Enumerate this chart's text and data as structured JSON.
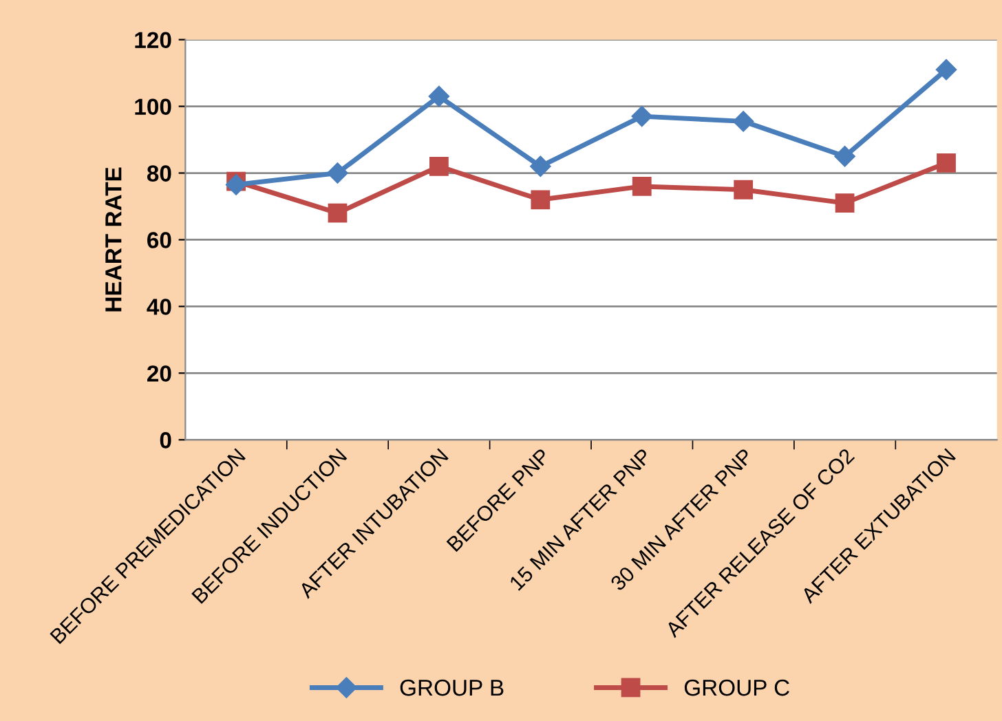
{
  "chart_data": {
    "type": "line",
    "ylabel": "HEART RATE",
    "categories": [
      "BEFORE PREMEDICATION",
      "BEFORE INDUCTION",
      "AFTER INTUBATION",
      "BEFORE PNP",
      "15 MIN AFTER PNP",
      "30 MIN AFTER PNP",
      "AFTER RELEASE OF CO2",
      "AFTER EXTUBATION"
    ],
    "series": [
      {
        "name": "GROUP B",
        "color": "#4a7ebb",
        "marker": "diamond",
        "values": [
          76.5,
          80,
          103,
          82,
          97,
          95.5,
          85,
          111
        ]
      },
      {
        "name": "GROUP C",
        "color": "#be4b48",
        "marker": "square",
        "values": [
          77.5,
          68,
          82,
          72,
          76,
          75,
          71,
          83
        ]
      }
    ],
    "ylim": [
      0,
      120
    ],
    "yticks": [
      0,
      20,
      40,
      60,
      80,
      100,
      120
    ],
    "grid": "y",
    "legend": "bottom",
    "line_style": "solid"
  }
}
